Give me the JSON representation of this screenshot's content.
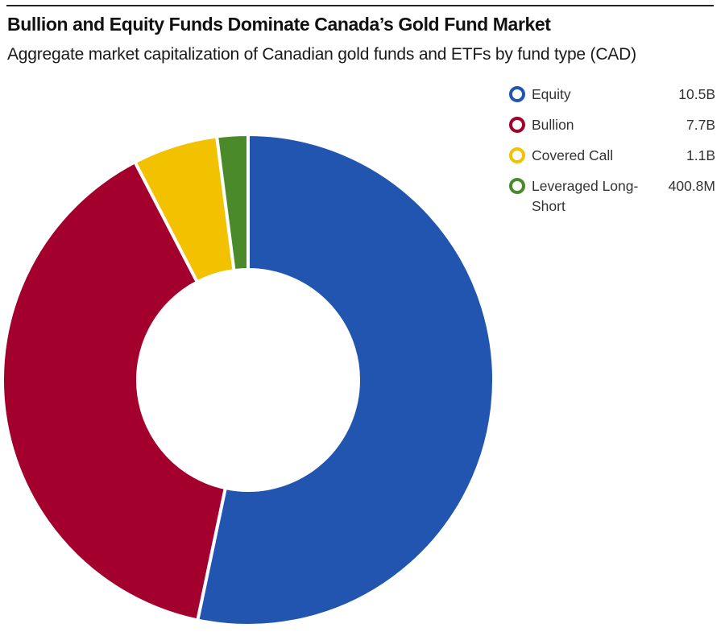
{
  "chart_data": {
    "type": "pie",
    "title": "Bullion and Equity Funds Dominate Canada’s Gold Fund Market",
    "subtitle": "Aggregate market capitalization of Canadian gold funds and ETFs by fund type (CAD)",
    "donut": true,
    "legend_position": "right",
    "series": [
      {
        "name": "Equity",
        "value": 10.5,
        "display": "10.5B",
        "color": "#2155b0"
      },
      {
        "name": "Bullion",
        "value": 7.7,
        "display": "7.7B",
        "color": "#a3002e"
      },
      {
        "name": "Covered Call",
        "value": 1.1,
        "display": "1.1B",
        "color": "#f2c200"
      },
      {
        "name": "Leveraged Long-Short",
        "value": 0.4008,
        "display": "400.8M",
        "color": "#4a8a2a"
      }
    ]
  }
}
